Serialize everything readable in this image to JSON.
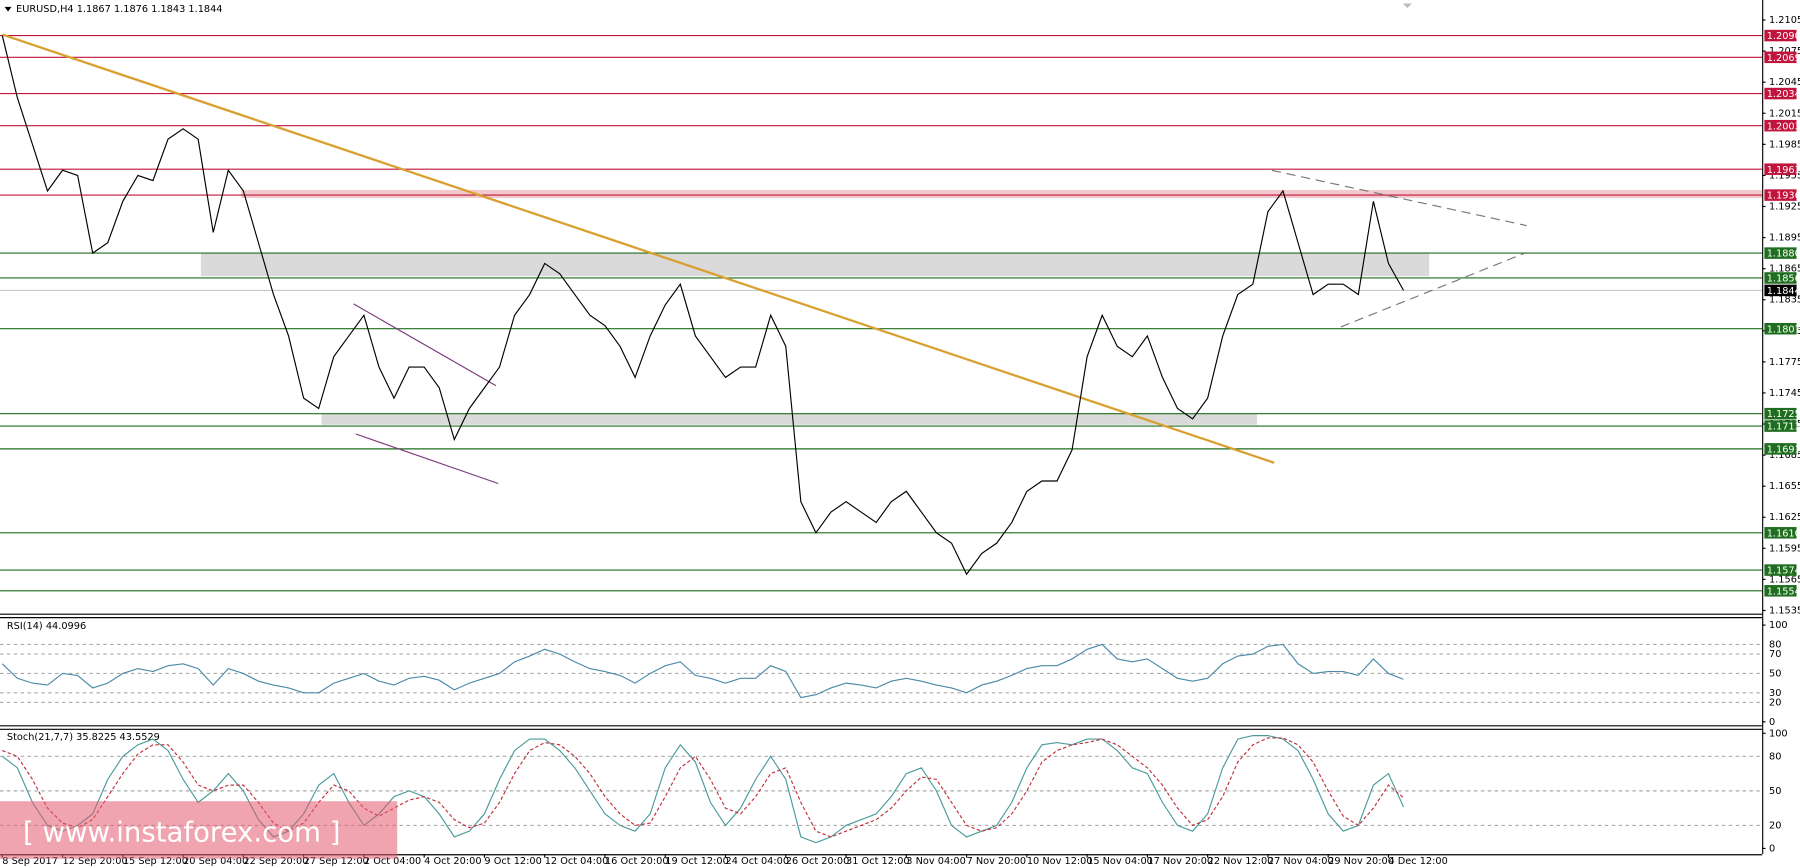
{
  "chart_data": {
    "type": "line",
    "header": "EURUSD,H4  1.1867 1.1876 1.1843 1.1844",
    "categories": [
      "8 Sep 2017",
      null,
      null,
      null,
      "12 Sep 20:00",
      null,
      null,
      null,
      "15 Sep 12:00",
      null,
      null,
      null,
      "20 Sep 04:00",
      null,
      null,
      null,
      "22 Sep 20:00",
      null,
      null,
      null,
      "27 Sep 12:00",
      null,
      null,
      null,
      "2 Oct 04:00",
      null,
      null,
      null,
      "4 Oct 20:00",
      null,
      null,
      null,
      "9 Oct 12:00",
      null,
      null,
      null,
      "12 Oct 04:00",
      null,
      null,
      null,
      "16 Oct 20:00",
      null,
      null,
      null,
      "19 Oct 12:00",
      null,
      null,
      null,
      "24 Oct 04:00",
      null,
      null,
      null,
      "26 Oct 20:00",
      null,
      null,
      null,
      "31 Oct 12:00",
      null,
      null,
      null,
      "3 Nov 04:00",
      null,
      null,
      null,
      "7 Nov 20:00",
      null,
      null,
      null,
      "10 Nov 12:00",
      null,
      null,
      null,
      "15 Nov 04:00",
      null,
      null,
      null,
      "17 Nov 20:00",
      null,
      null,
      null,
      "22 Nov 12:00",
      null,
      null,
      null,
      "27 Nov 04:00",
      null,
      null,
      null,
      "29 Nov 20:00",
      null,
      null,
      null,
      "4 Dec 12:00",
      null
    ],
    "price": {
      "color": "#000000",
      "ylim": [
        1.1532,
        1.2121
      ],
      "yticks": [
        1.2105,
        1.2075,
        1.2045,
        1.2015,
        1.1985,
        1.1955,
        1.1925,
        1.1895,
        1.1865,
        1.1835,
        1.1805,
        1.1775,
        1.1745,
        1.1715,
        1.1685,
        1.1655,
        1.1625,
        1.1595,
        1.1565,
        1.1535
      ],
      "values": [
        1.209,
        1.203,
        1.1985,
        1.194,
        1.196,
        1.1955,
        1.188,
        1.189,
        1.193,
        1.1955,
        1.195,
        1.199,
        1.2,
        1.199,
        1.19,
        1.196,
        1.194,
        1.189,
        1.184,
        1.18,
        1.174,
        1.173,
        1.178,
        1.18,
        1.182,
        1.177,
        1.174,
        1.177,
        1.177,
        1.175,
        1.17,
        1.173,
        1.175,
        1.177,
        1.182,
        1.184,
        1.187,
        1.186,
        1.184,
        1.182,
        1.181,
        1.179,
        1.176,
        1.18,
        1.183,
        1.185,
        1.18,
        1.178,
        1.176,
        1.177,
        1.177,
        1.182,
        1.179,
        1.164,
        1.161,
        1.163,
        1.164,
        1.163,
        1.162,
        1.164,
        1.165,
        1.163,
        1.161,
        1.16,
        1.157,
        1.159,
        1.16,
        1.162,
        1.165,
        1.166,
        1.166,
        1.169,
        1.178,
        1.182,
        1.179,
        1.178,
        1.18,
        1.176,
        1.173,
        1.172,
        1.174,
        1.18,
        1.184,
        1.185,
        1.192,
        1.194,
        1.189,
        1.184,
        1.185,
        1.185,
        1.184,
        1.193,
        1.187,
        1.1844
      ]
    },
    "levels": [
      {
        "value": 1.209,
        "label": "1.2090",
        "color": "#c0143c"
      },
      {
        "value": 1.2069,
        "color": "#c0143c"
      },
      {
        "value": 1.2034,
        "color": "#c0143c"
      },
      {
        "value": 1.2003,
        "color": "#c0143c"
      },
      {
        "value": 1.1961,
        "color": "#c0143c"
      },
      {
        "value": 1.1936,
        "color": "#c0143c"
      },
      {
        "value": 1.188,
        "label": "1.1880",
        "color": "#1f6e1f"
      },
      {
        "value": 1.1856,
        "color": "#1f6e1f"
      },
      {
        "value": 1.1807,
        "color": "#1f6e1f"
      },
      {
        "value": 1.1725,
        "color": "#1f6e1f"
      },
      {
        "value": 1.1713,
        "color": "#1f6e1f"
      },
      {
        "value": 1.1691,
        "color": "#1f6e1f"
      },
      {
        "value": 1.161,
        "label": "1.1610",
        "color": "#1f6e1f"
      },
      {
        "value": 1.1574,
        "color": "#1f6e1f"
      },
      {
        "value": 1.1554,
        "color": "#1f6e1f"
      }
    ],
    "last_price": 1.1844,
    "rsi": {
      "label": "RSI(14) 44.0996",
      "color": "#4a8aa8",
      "ylim": [
        0,
        100
      ],
      "yticks": [
        100,
        80,
        70,
        50,
        30,
        20,
        0
      ],
      "values": [
        60,
        45,
        40,
        38,
        50,
        48,
        35,
        40,
        50,
        55,
        52,
        58,
        60,
        55,
        38,
        55,
        50,
        42,
        38,
        35,
        30,
        30,
        40,
        45,
        50,
        42,
        38,
        45,
        47,
        43,
        33,
        40,
        45,
        50,
        62,
        68,
        75,
        70,
        62,
        55,
        52,
        48,
        40,
        50,
        58,
        62,
        48,
        45,
        40,
        45,
        45,
        58,
        52,
        25,
        28,
        35,
        40,
        38,
        35,
        42,
        45,
        42,
        38,
        35,
        30,
        38,
        42,
        48,
        55,
        58,
        58,
        65,
        75,
        80,
        65,
        62,
        65,
        55,
        45,
        42,
        45,
        60,
        68,
        70,
        78,
        80,
        60,
        50,
        52,
        52,
        48,
        65,
        50,
        44
      ]
    },
    "stoch": {
      "label": "Stoch(21,7,7) 35.8225 43.5529",
      "ylim": [
        0,
        100
      ],
      "yticks": [
        100,
        80,
        50,
        20,
        0
      ],
      "series": [
        {
          "color": "#4a9a9a",
          "values": [
            80,
            70,
            40,
            20,
            15,
            20,
            30,
            60,
            80,
            90,
            95,
            85,
            60,
            40,
            50,
            65,
            50,
            25,
            10,
            15,
            30,
            55,
            65,
            40,
            20,
            30,
            45,
            50,
            45,
            30,
            10,
            15,
            30,
            60,
            85,
            95,
            95,
            85,
            70,
            50,
            30,
            20,
            15,
            30,
            70,
            90,
            75,
            40,
            20,
            35,
            60,
            80,
            60,
            10,
            5,
            10,
            20,
            25,
            30,
            45,
            65,
            70,
            50,
            20,
            10,
            15,
            20,
            40,
            70,
            90,
            92,
            90,
            95,
            95,
            85,
            70,
            65,
            40,
            20,
            15,
            30,
            70,
            95,
            98,
            98,
            95,
            85,
            60,
            30,
            15,
            20,
            55,
            65,
            36
          ]
        },
        {
          "color": "#c0303a",
          "dashed": true,
          "values": [
            85,
            80,
            60,
            35,
            22,
            18,
            25,
            45,
            65,
            82,
            90,
            90,
            75,
            55,
            50,
            55,
            55,
            40,
            22,
            15,
            22,
            40,
            55,
            50,
            35,
            28,
            35,
            42,
            45,
            40,
            25,
            18,
            22,
            40,
            65,
            85,
            92,
            90,
            80,
            65,
            45,
            30,
            20,
            22,
            45,
            70,
            80,
            60,
            35,
            30,
            45,
            65,
            70,
            40,
            15,
            10,
            15,
            20,
            25,
            35,
            50,
            62,
            60,
            40,
            20,
            15,
            18,
            30,
            50,
            75,
            85,
            90,
            92,
            95,
            90,
            80,
            70,
            55,
            35,
            20,
            25,
            45,
            75,
            90,
            96,
            96,
            90,
            75,
            50,
            28,
            20,
            35,
            55,
            44
          ]
        }
      ]
    },
    "watermark": "[ www.instaforex.com ]"
  }
}
